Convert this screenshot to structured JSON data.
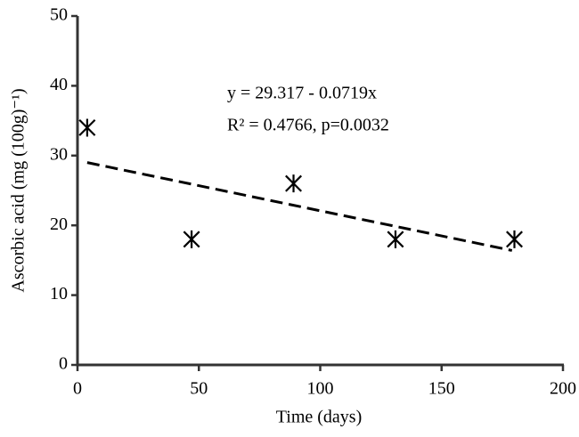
{
  "chart_data": {
    "type": "scatter",
    "xlabel": "Time (days)",
    "ylabel": "Ascorbic acid (mg (100g)⁻¹)",
    "annotations": [
      "y = 29.317 - 0.0719x",
      "R² = 0.4766, p=0.0032"
    ],
    "series": [
      {
        "type": "scatter",
        "color": "#000000",
        "x": [
          4,
          47,
          89,
          131,
          180
        ],
        "values": [
          34,
          18,
          26,
          18,
          18
        ]
      },
      {
        "type": "line",
        "dashed": true,
        "color": "#000000",
        "x": [
          4,
          179
        ],
        "values": [
          29.0,
          16.4
        ]
      }
    ],
    "xlim": [
      0,
      200
    ],
    "xticks": [
      0,
      50,
      100,
      150,
      200
    ],
    "ylim": [
      0,
      50
    ],
    "yticks": [
      0,
      10,
      20,
      30,
      40,
      50
    ],
    "grid": false
  }
}
